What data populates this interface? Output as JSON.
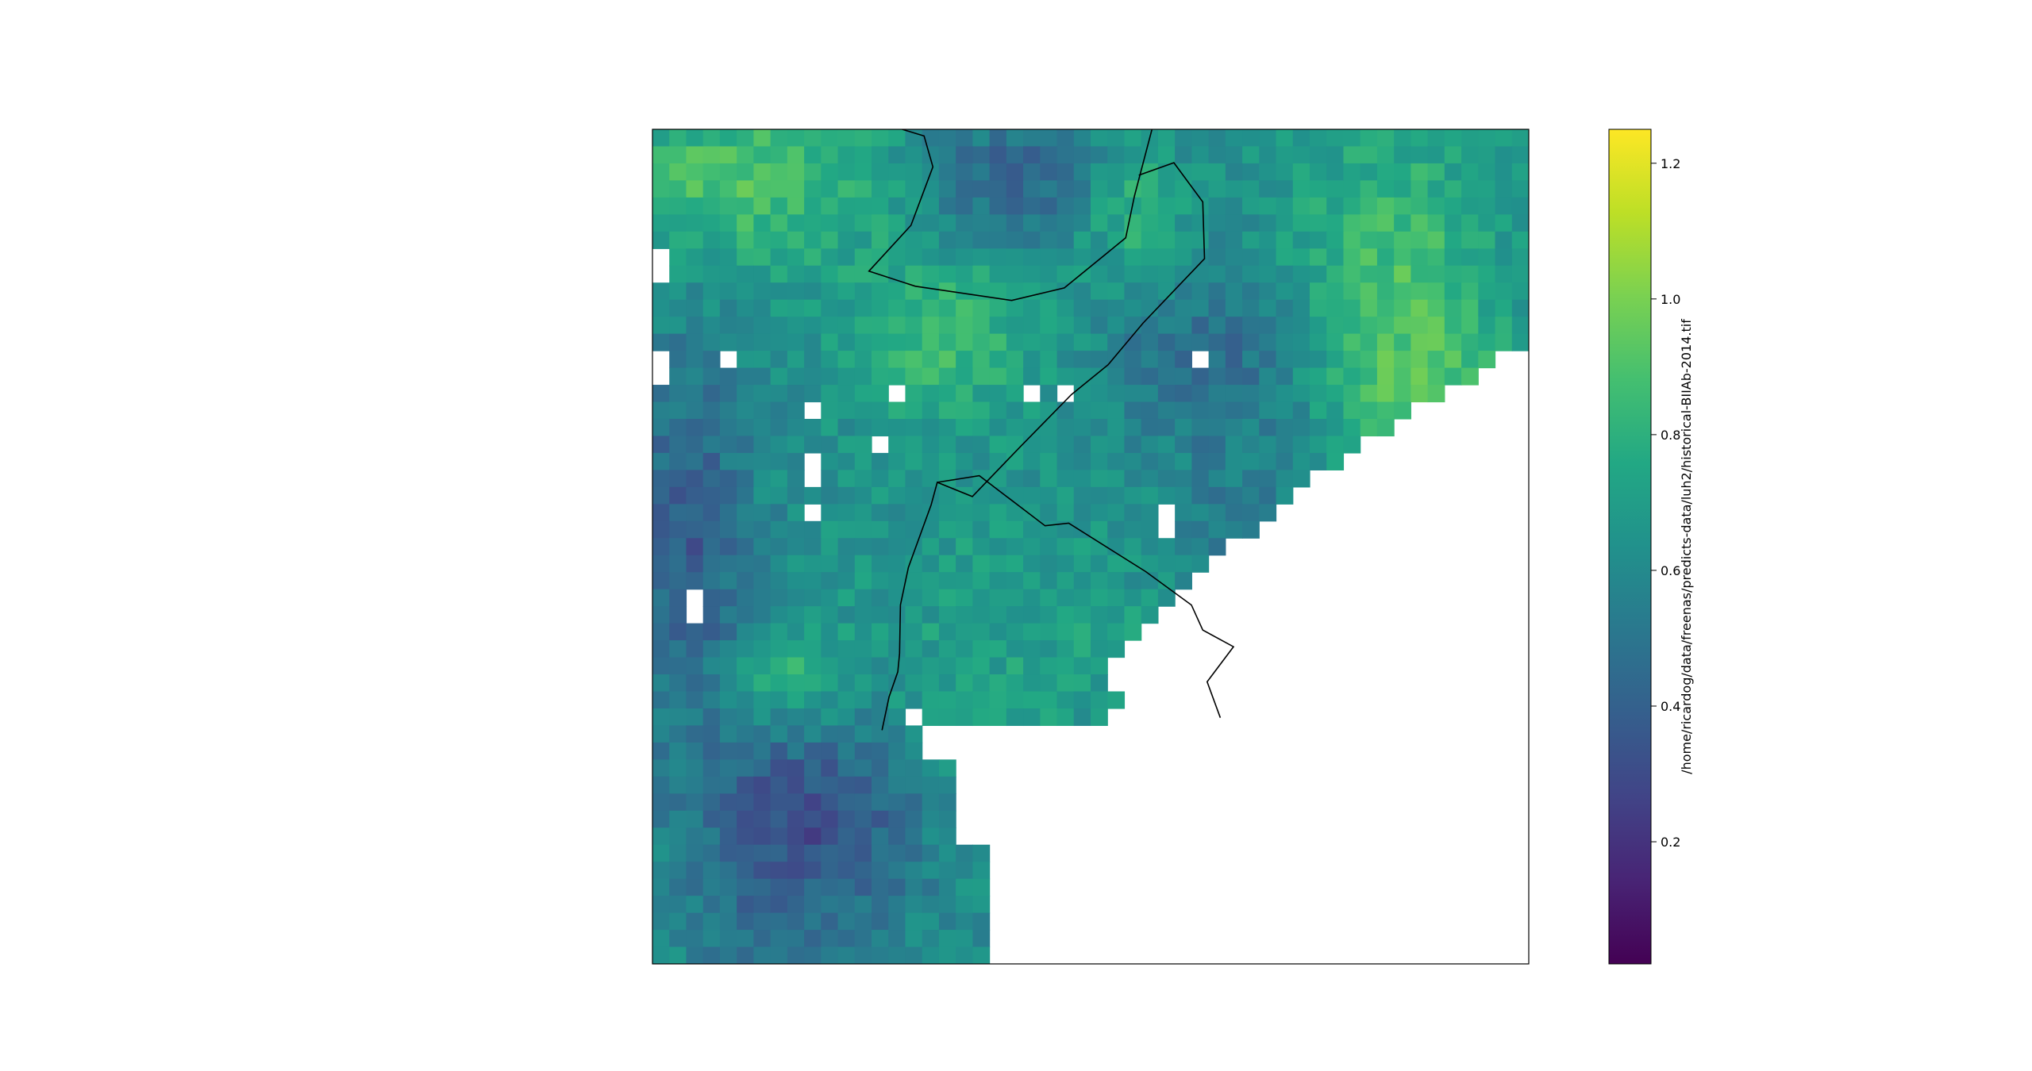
{
  "figure": {
    "colorbar": {
      "label": "/home/ricardog/data/freenas/predicts-data/luh2/historical-BIIAb-2014.tif",
      "colormap": "viridis",
      "vmin": 0.02,
      "vmax": 1.25,
      "ticks": [
        {
          "value": 0.2,
          "label": "0.2"
        },
        {
          "value": 0.4,
          "label": "0.4"
        },
        {
          "value": 0.6,
          "label": "0.6"
        },
        {
          "value": 0.8,
          "label": "0.8"
        },
        {
          "value": 1.0,
          "label": "1.0"
        },
        {
          "value": 1.2,
          "label": "1.2"
        }
      ]
    }
  },
  "chart_data": {
    "type": "heatmap",
    "title": "",
    "xlabel": "",
    "ylabel": "",
    "grid": false,
    "nodata_color": "#ffffff",
    "frame": true,
    "has_border_lines": true,
    "value_range": [
      0.02,
      1.25
    ],
    "grid_shape": [
      49,
      52
    ]
  }
}
